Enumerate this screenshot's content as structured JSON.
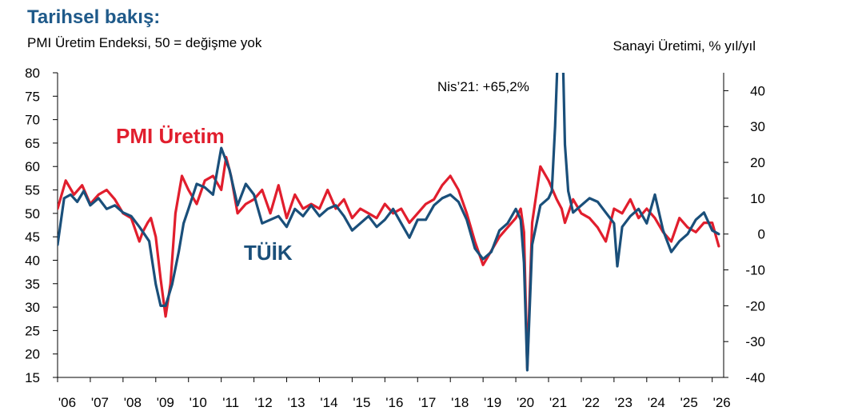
{
  "header": {
    "title": "Tarihsel bakış:",
    "subtitle": "PMI Üretim Endeksi, 50 = değişme yok",
    "right_axis_title": "Sanayi Üretimi, % yıl/yıl"
  },
  "colors": {
    "pmi": "#e11e2d",
    "tuik": "#1a4f7a",
    "axis": "#000000"
  },
  "chart_data": {
    "type": "line",
    "left_axis": {
      "min": 15,
      "max": 80,
      "ticks": [
        "80",
        "75",
        "70",
        "65",
        "60",
        "55",
        "50",
        "45",
        "40",
        "35",
        "30",
        "25",
        "20",
        "15"
      ]
    },
    "right_axis": {
      "min": -40,
      "max": 45,
      "ticks": [
        "40",
        "30",
        "20",
        "10",
        "0",
        "-10",
        "-20",
        "-30",
        "-40"
      ]
    },
    "x_ticks": [
      "'06",
      "'07",
      "'08",
      "'09",
      "'10",
      "'11",
      "'12",
      "'13",
      "'14",
      "'15",
      "'16",
      "'17",
      "'18",
      "'19",
      "'20",
      "'21",
      "'22",
      "'23",
      "'24",
      "'25",
      "'26"
    ],
    "annotation": {
      "text": "Nis’21: +65,2%",
      "x": 2021.3,
      "value": 65.2
    },
    "series": [
      {
        "name": "PMI Üretim",
        "axis": "left",
        "x": [
          2006.0,
          2006.25,
          2006.5,
          2006.75,
          2007.0,
          2007.25,
          2007.5,
          2007.75,
          2008.0,
          2008.25,
          2008.5,
          2008.6,
          2008.75,
          2008.85,
          2009.0,
          2009.15,
          2009.3,
          2009.45,
          2009.6,
          2009.8,
          2010.0,
          2010.25,
          2010.5,
          2010.75,
          2011.0,
          2011.15,
          2011.3,
          2011.5,
          2011.75,
          2012.0,
          2012.25,
          2012.5,
          2012.75,
          2013.0,
          2013.25,
          2013.5,
          2013.75,
          2014.0,
          2014.25,
          2014.5,
          2014.75,
          2015.0,
          2015.25,
          2015.5,
          2015.75,
          2016.0,
          2016.25,
          2016.5,
          2016.75,
          2017.0,
          2017.25,
          2017.5,
          2017.75,
          2018.0,
          2018.25,
          2018.5,
          2018.75,
          2019.0,
          2019.25,
          2019.5,
          2019.75,
          2020.0,
          2020.15,
          2020.25,
          2020.35,
          2020.5,
          2020.75,
          2021.0,
          2021.25,
          2021.4,
          2021.5,
          2021.75,
          2022.0,
          2022.25,
          2022.5,
          2022.75,
          2023.0,
          2023.25,
          2023.5,
          2023.75,
          2024.0,
          2024.25,
          2024.5,
          2024.75,
          2025.0,
          2025.25,
          2025.5,
          2025.75,
          2026.0,
          2026.2
        ],
        "values": [
          51,
          57,
          54,
          56,
          52,
          54,
          55,
          53,
          50,
          49,
          44,
          46,
          48,
          49,
          45,
          36,
          28,
          35,
          50,
          58,
          55,
          52,
          57,
          58,
          55,
          62,
          58,
          50,
          52,
          53,
          55,
          50,
          56,
          49,
          54,
          51,
          52,
          51,
          55,
          51,
          53,
          49,
          51,
          50,
          49,
          52,
          50,
          51,
          48,
          50,
          52,
          53,
          56,
          58,
          55,
          50,
          44,
          39,
          42,
          45,
          47,
          49,
          51,
          46,
          17,
          48,
          60,
          57,
          53,
          51,
          48,
          53,
          50,
          49,
          47,
          44,
          51,
          50,
          53,
          49,
          51,
          49,
          46,
          44,
          49,
          47,
          46,
          48,
          48,
          43
        ]
      },
      {
        "name": "TÜİK",
        "axis": "right",
        "x": [
          2006.0,
          2006.2,
          2006.4,
          2006.6,
          2006.8,
          2007.0,
          2007.25,
          2007.5,
          2007.75,
          2008.0,
          2008.25,
          2008.5,
          2008.65,
          2008.8,
          2008.9,
          2009.0,
          2009.15,
          2009.3,
          2009.5,
          2009.7,
          2009.85,
          2010.0,
          2010.25,
          2010.5,
          2010.75,
          2011.0,
          2011.25,
          2011.5,
          2011.75,
          2012.0,
          2012.25,
          2012.5,
          2012.75,
          2013.0,
          2013.25,
          2013.5,
          2013.75,
          2014.0,
          2014.25,
          2014.5,
          2014.75,
          2015.0,
          2015.25,
          2015.5,
          2015.75,
          2016.0,
          2016.25,
          2016.5,
          2016.75,
          2017.0,
          2017.25,
          2017.5,
          2017.75,
          2018.0,
          2018.25,
          2018.5,
          2018.75,
          2019.0,
          2019.25,
          2019.5,
          2019.75,
          2020.0,
          2020.15,
          2020.25,
          2020.35,
          2020.5,
          2020.75,
          2021.0,
          2021.1,
          2021.2,
          2021.3,
          2021.4,
          2021.5,
          2021.6,
          2021.75,
          2022.0,
          2022.25,
          2022.5,
          2022.75,
          2023.0,
          2023.1,
          2023.25,
          2023.5,
          2023.75,
          2024.0,
          2024.25,
          2024.5,
          2024.75,
          2025.0,
          2025.25,
          2025.5,
          2025.75,
          2026.0,
          2026.2
        ],
        "values": [
          -3,
          10,
          11,
          9,
          12,
          8,
          10,
          7,
          8,
          6,
          5,
          2,
          0,
          -2,
          -8,
          -14,
          -20,
          -20,
          -14,
          -5,
          3,
          7,
          14,
          13,
          11,
          24,
          18,
          8,
          14,
          11,
          3,
          4,
          5,
          2,
          7,
          5,
          8,
          5,
          7,
          8,
          5,
          1,
          3,
          5,
          2,
          4,
          7,
          3,
          -1,
          4,
          4,
          8,
          10,
          11,
          9,
          4,
          -4,
          -7,
          -5,
          1,
          3,
          7,
          4,
          -8,
          -38,
          -3,
          8,
          10,
          12,
          30,
          55,
          65,
          25,
          12,
          6,
          8,
          10,
          9,
          6,
          3,
          -9,
          2,
          5,
          7,
          3,
          11,
          1,
          -5,
          -2,
          0,
          4,
          6,
          1,
          0
        ]
      }
    ],
    "series_labels": [
      "PMI Üretim",
      "TÜİK"
    ]
  }
}
